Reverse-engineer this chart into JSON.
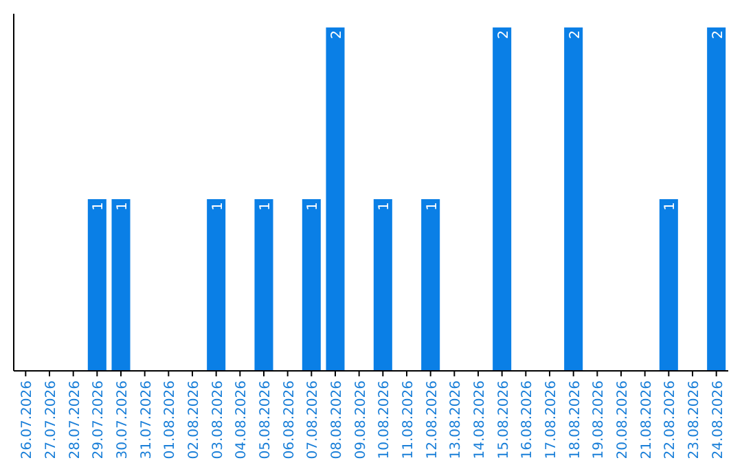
{
  "chart_data": {
    "type": "bar",
    "categories": [
      "26.07.2026",
      "27.07.2026",
      "28.07.2026",
      "29.07.2026",
      "30.07.2026",
      "31.07.2026",
      "01.08.2026",
      "02.08.2026",
      "03.08.2026",
      "04.08.2026",
      "05.08.2026",
      "06.08.2026",
      "07.08.2026",
      "08.08.2026",
      "09.08.2026",
      "10.08.2026",
      "11.08.2026",
      "12.08.2026",
      "13.08.2026",
      "14.08.2026",
      "15.08.2026",
      "16.08.2026",
      "17.08.2026",
      "18.08.2026",
      "19.08.2026",
      "20.08.2026",
      "21.08.2026",
      "22.08.2026",
      "23.08.2026",
      "24.08.2026"
    ],
    "values": [
      0,
      0,
      0,
      1,
      1,
      0,
      0,
      0,
      1,
      0,
      1,
      0,
      1,
      2,
      0,
      1,
      0,
      1,
      0,
      0,
      2,
      0,
      0,
      2,
      0,
      0,
      0,
      1,
      0,
      2
    ],
    "value_labels": [
      null,
      null,
      null,
      "1",
      "1",
      null,
      null,
      null,
      "1",
      null,
      "1",
      null,
      "1",
      "2",
      null,
      "1",
      null,
      "1",
      null,
      null,
      "2",
      null,
      null,
      "2",
      null,
      null,
      null,
      "1",
      null,
      "2"
    ],
    "color": "#0a7fe6"
  }
}
